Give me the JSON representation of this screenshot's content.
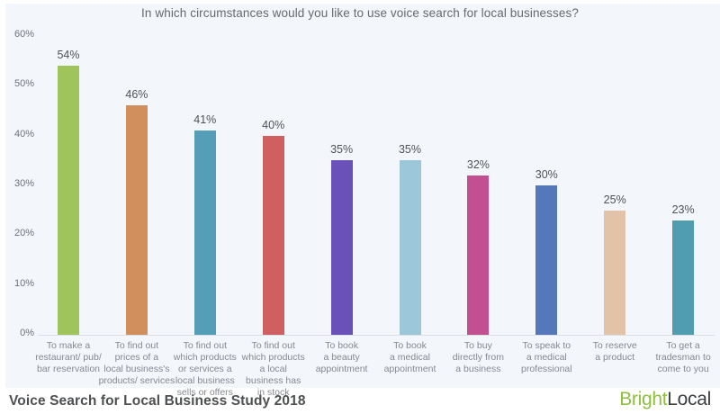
{
  "chart": {
    "title": "In which circumstances would you like to use voice search for local businesses?",
    "footer": {
      "study": "Voice Search for Local Business Study 2018",
      "brand_part1": "Bright",
      "brand_part2": "Local",
      "brand_part1_color": "#8fbe3f",
      "brand_part2_color": "#3b3e41"
    },
    "panel_background": "#f3f6fa"
  },
  "chart_data": {
    "type": "bar",
    "title": "In which circumstances would you like to use voice search for local businesses?",
    "categories": [
      "To make a restaurant/ pub/ bar reservation",
      "To find out prices of a local business's products/ services",
      "To find out which products or services a local business sells or offers",
      "To find out which products a local business has in stock",
      "To book a beauty appointment",
      "To book a medical appointment",
      "To buy directly from a business",
      "To speak to a medical professional",
      "To reserve a product",
      "To get a tradesman to come to you"
    ],
    "category_lines": [
      [
        "To make a",
        "restaurant/ pub/",
        "bar reservation"
      ],
      [
        "To find out",
        "prices of a",
        "local business's",
        "products/ services"
      ],
      [
        "To find out",
        "which products",
        "or services a",
        "local business",
        "sells or offers"
      ],
      [
        "To find out",
        "which products",
        "a local",
        "business has",
        "in stock"
      ],
      [
        "To book",
        "a beauty",
        "appointment"
      ],
      [
        "To book",
        "a medical",
        "appointment"
      ],
      [
        "To buy",
        "directly from",
        "a business"
      ],
      [
        "To speak to",
        "a medical",
        "professional"
      ],
      [
        "To reserve",
        "a product"
      ],
      [
        "To get a",
        "tradesman to",
        "come to you"
      ]
    ],
    "values": [
      54,
      46,
      41,
      40,
      35,
      35,
      32,
      30,
      25,
      23
    ],
    "value_labels": [
      "54%",
      "46%",
      "41%",
      "40%",
      "35%",
      "35%",
      "32%",
      "30%",
      "25%",
      "23%"
    ],
    "bar_colors": [
      "#a0c45c",
      "#d18f5d",
      "#549eb7",
      "#d05f61",
      "#6951b9",
      "#9cc7d8",
      "#c24f90",
      "#5578bb",
      "#e2c3a7",
      "#4f9dae"
    ],
    "xlabel": "",
    "ylabel": "",
    "ylim": [
      0,
      60
    ],
    "ytick_labels": [
      "0%",
      "10%",
      "20%",
      "30%",
      "40%",
      "50%",
      "60%"
    ],
    "ytick_values": [
      0,
      10,
      20,
      30,
      40,
      50,
      60
    ],
    "grid": false,
    "legend": "none"
  }
}
